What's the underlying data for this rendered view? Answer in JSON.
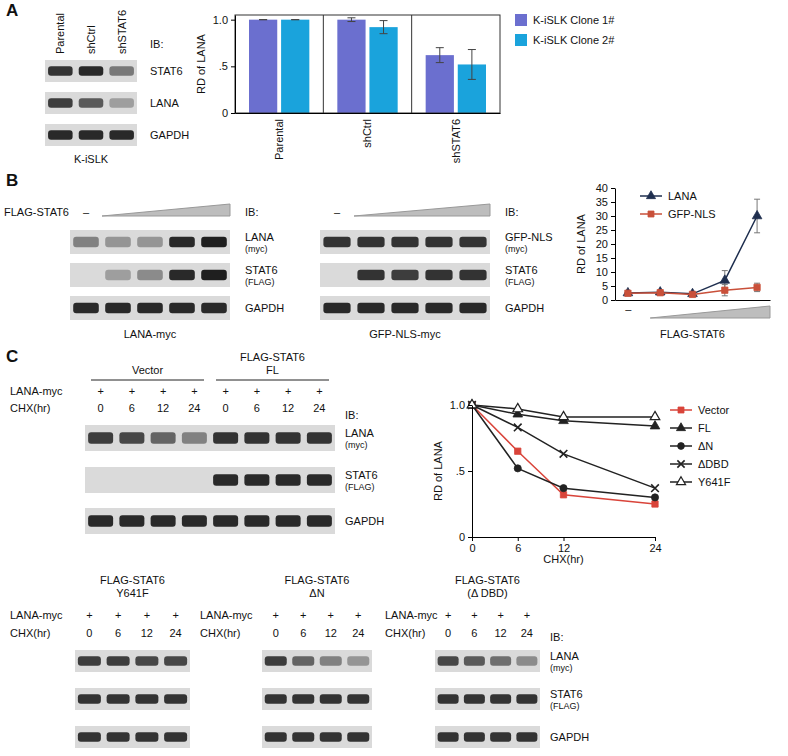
{
  "panel_labels": [
    "A",
    "B",
    "C"
  ],
  "chart_data": [
    {
      "type": "bar",
      "y_label": "RD of LANA",
      "categories": [
        "Parental",
        "shCtrl",
        "shSTAT6"
      ],
      "series": [
        {
          "name": "K-iSLK Clone 1#",
          "color": "#6b6fcf",
          "values": [
            1.0,
            1.0,
            0.62
          ],
          "errors": [
            0,
            0.02,
            0.08
          ]
        },
        {
          "name": "K-iSLK Clone 2#",
          "color": "#1aa3dc",
          "values": [
            1.0,
            0.92,
            0.52
          ],
          "errors": [
            0,
            0.07,
            0.16
          ]
        }
      ],
      "ylim": [
        0,
        1.05
      ],
      "yticks": [
        0,
        {
          "value": 0.5,
          "label": ".5"
        },
        {
          "value": 1,
          "label": "1.0"
        }
      ],
      "legend": "right"
    },
    {
      "type": "line",
      "y_label": "RD of LANA",
      "x_label": "FLAG-STAT6",
      "categories": [
        "–",
        null,
        null,
        null,
        null
      ],
      "series": [
        {
          "name": "LANA",
          "color": "#1f2f4f",
          "marker": "triangle",
          "values": [
            2.5,
            2.8,
            2.2,
            7,
            30
          ],
          "errors": [
            0.4,
            0.4,
            0.4,
            3.5,
            6
          ]
        },
        {
          "name": "GFP-NLS",
          "color": "#c9503a",
          "marker": "square",
          "values": [
            2.4,
            2.6,
            2.0,
            3.5,
            4.5
          ],
          "errors": [
            0.3,
            0.3,
            0.3,
            2,
            1.5
          ]
        }
      ],
      "ylim": [
        0,
        40
      ],
      "yticks": [
        0,
        5,
        10,
        15,
        20,
        25,
        30,
        35,
        40
      ],
      "legend": "top-left"
    },
    {
      "type": "line",
      "y_label": "RD of LANA",
      "x_label": "CHX(hr)",
      "x": [
        0,
        6,
        12,
        24
      ],
      "xlim": [
        0,
        24
      ],
      "xticks": [
        0,
        6,
        12,
        24
      ],
      "series": [
        {
          "name": "Vector",
          "color": "#d9443a",
          "marker": "square",
          "values": [
            1.0,
            0.65,
            0.32,
            0.25
          ]
        },
        {
          "name": "FL",
          "color": "#222222",
          "marker": "triangle",
          "values": [
            1.0,
            0.93,
            0.88,
            0.84
          ]
        },
        {
          "name": "ΔN",
          "color": "#222222",
          "marker": "circle",
          "values": [
            1.0,
            0.52,
            0.37,
            0.3
          ]
        },
        {
          "name": "ΔDBD",
          "color": "#222222",
          "marker": "x",
          "values": [
            1.0,
            0.83,
            0.63,
            0.37
          ]
        },
        {
          "name": "Y641F",
          "color": "#222222",
          "marker": "triangle-open",
          "values": [
            1.0,
            0.97,
            0.91,
            0.91
          ]
        }
      ],
      "ylim": [
        0,
        1
      ],
      "yticks": [
        0,
        {
          "value": 0.5,
          "label": ".5"
        },
        {
          "value": 1,
          "label": "1.0"
        }
      ],
      "legend": "right"
    }
  ],
  "blots": [
    {
      "ib": "IB:",
      "lanes": [
        "Parental",
        "shCtrl",
        "shSTAT6"
      ],
      "rows": [
        {
          "label": "STAT6",
          "intensity": [
            0.85,
            0.9,
            0.5
          ]
        },
        {
          "label": "LANA",
          "intensity": [
            0.8,
            0.65,
            0.3
          ]
        },
        {
          "label": "GAPDH",
          "intensity": [
            0.9,
            0.9,
            0.9
          ]
        }
      ],
      "caption": "K-iSLK"
    },
    {
      "ib": "IB:",
      "header": {
        "wedge_label": "FLAG-STAT6",
        "control": "–"
      },
      "rows": [
        {
          "label": "LANA",
          "sublabel": "(myc)",
          "intensity": [
            0.45,
            0.35,
            0.35,
            0.9,
            0.95
          ]
        },
        {
          "label": "STAT6",
          "sublabel": "(FLAG)",
          "intensity": [
            0,
            0.3,
            0.4,
            0.9,
            0.95
          ]
        },
        {
          "label": "GAPDH",
          "intensity": [
            0.9,
            0.9,
            0.9,
            0.9,
            0.9
          ]
        }
      ],
      "caption": "LANA-myc"
    },
    {
      "ib": "IB:",
      "header": {
        "control": "–"
      },
      "rows": [
        {
          "label": "GFP-NLS",
          "sublabel": "(myc)",
          "intensity": [
            0.85,
            0.85,
            0.85,
            0.85,
            0.85
          ]
        },
        {
          "label": "STAT6",
          "sublabel": "(FLAG)",
          "intensity": [
            0,
            0.85,
            0.8,
            0.85,
            0.85
          ]
        },
        {
          "label": "GAPDH",
          "intensity": [
            0.9,
            0.9,
            0.9,
            0.9,
            0.9
          ]
        }
      ],
      "caption": "GFP-NLS-myc"
    },
    {
      "ib": "IB:",
      "groups": [
        {
          "title": [
            "Vector"
          ]
        },
        {
          "title": [
            "FLAG-STAT6",
            "FL"
          ]
        }
      ],
      "treatments": [
        {
          "label": "LANA-myc",
          "values": [
            "+",
            "+",
            "+",
            "+",
            "+",
            "+",
            "+",
            "+"
          ]
        },
        {
          "label": "CHX(hr)",
          "values": [
            0,
            6,
            12,
            24,
            0,
            6,
            12,
            24
          ]
        }
      ],
      "rows": [
        {
          "label": "LANA",
          "sublabel": "(myc)",
          "intensity": [
            0.8,
            0.75,
            0.6,
            0.45,
            0.85,
            0.85,
            0.85,
            0.85
          ]
        },
        {
          "label": "STAT6",
          "sublabel": "(FLAG)",
          "intensity": [
            0,
            0,
            0,
            0,
            0.9,
            0.9,
            0.9,
            0.9
          ]
        },
        {
          "label": "GAPDH",
          "intensity": [
            0.9,
            0.9,
            0.9,
            0.9,
            0.9,
            0.9,
            0.9,
            0.9
          ]
        }
      ]
    },
    {
      "ib": "IB:",
      "groups": [
        {
          "title": [
            "FLAG-STAT6",
            "Y641F"
          ],
          "treatments": [
            {
              "label": "LANA-myc",
              "values": [
                "+",
                "+",
                "+",
                "+"
              ]
            },
            {
              "label": "CHX(hr)",
              "values": [
                0,
                6,
                12,
                24
              ]
            }
          ]
        },
        {
          "title": [
            "FLAG-STAT6",
            "ΔN"
          ],
          "treatments": [
            {
              "label": "LANA-myc",
              "values": [
                "+",
                "+",
                "+",
                "+"
              ]
            },
            {
              "label": "CHX(hr)",
              "values": [
                0,
                6,
                12,
                24
              ]
            }
          ]
        },
        {
          "title": [
            "FLAG-STAT6",
            "(Δ DBD)"
          ],
          "treatments": [
            {
              "label": "LANA-myc",
              "values": [
                "+",
                "+",
                "+",
                "+"
              ]
            },
            {
              "label": "CHX(hr)",
              "values": [
                0,
                6,
                12,
                24
              ]
            }
          ]
        }
      ],
      "rows": [
        {
          "label": "LANA",
          "sublabel": "(myc)",
          "intensity": [
            0.8,
            0.8,
            0.75,
            0.75,
            0.8,
            0.6,
            0.45,
            0.35,
            0.75,
            0.65,
            0.55,
            0.4
          ]
        },
        {
          "label": "STAT6",
          "sublabel": "(FLAG)",
          "intensity": [
            0.85,
            0.85,
            0.85,
            0.85,
            0.85,
            0.85,
            0.85,
            0.85,
            0.85,
            0.85,
            0.85,
            0.85
          ]
        },
        {
          "label": "GAPDH",
          "intensity": [
            0.85,
            0.85,
            0.85,
            0.85,
            0.85,
            0.85,
            0.85,
            0.85,
            0.85,
            0.85,
            0.85,
            0.85
          ]
        }
      ]
    }
  ]
}
